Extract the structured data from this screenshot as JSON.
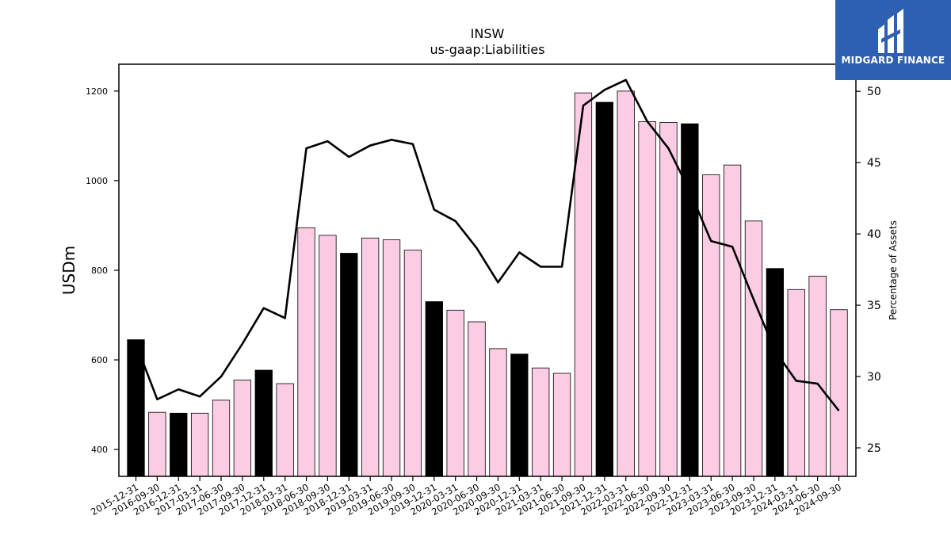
{
  "chart_data": {
    "type": "bar",
    "title": "INSW",
    "subtitle": "us-gaap:Liabilities",
    "ylabel": "USDm",
    "y2label": "Percentage of Assets",
    "ylim": [
      340,
      1260
    ],
    "y2lim": [
      23.0,
      51.9
    ],
    "yticks": [
      400,
      600,
      800,
      1000,
      1200
    ],
    "y2ticks": [
      25,
      30,
      35,
      40,
      45,
      50
    ],
    "categories": [
      "2015-12-31",
      "2016-09-30",
      "2016-12-31",
      "2017-03-31",
      "2017-06-30",
      "2017-09-30",
      "2017-12-31",
      "2018-03-31",
      "2018-06-30",
      "2018-09-30",
      "2018-12-31",
      "2019-03-31",
      "2019-06-30",
      "2019-09-30",
      "2019-12-31",
      "2020-03-31",
      "2020-06-30",
      "2020-09-30",
      "2020-12-31",
      "2021-03-31",
      "2021-06-30",
      "2021-09-30",
      "2021-12-31",
      "2022-03-31",
      "2022-06-30",
      "2022-09-30",
      "2022-12-31",
      "2023-03-31",
      "2023-06-30",
      "2023-09-30",
      "2023-12-31",
      "2024-03-31",
      "2024-06-30",
      "2024-09-30"
    ],
    "series": [
      {
        "type": "bar",
        "axis": "left",
        "values": [
          645,
          483,
          481,
          481,
          510,
          555,
          577,
          547,
          895,
          878,
          838,
          872,
          868,
          845,
          730,
          711,
          685,
          625,
          613,
          582,
          570,
          1196,
          1175,
          1200,
          1132,
          1130,
          1127,
          1013,
          1035,
          910,
          804,
          757,
          787,
          712
        ],
        "highlight": [
          true,
          false,
          true,
          false,
          false,
          false,
          true,
          false,
          false,
          false,
          true,
          false,
          false,
          false,
          true,
          false,
          false,
          false,
          true,
          false,
          false,
          false,
          true,
          false,
          false,
          false,
          true,
          false,
          false,
          false,
          true,
          false,
          false,
          false
        ],
        "color": "#fbcce4",
        "highlight_color": "#000000"
      },
      {
        "type": "line",
        "axis": "right",
        "values": [
          32.3,
          28.4,
          29.1,
          28.6,
          30.0,
          32.3,
          34.8,
          34.1,
          46.0,
          46.5,
          45.4,
          46.2,
          46.6,
          46.3,
          41.7,
          40.9,
          39.0,
          36.6,
          38.7,
          37.7,
          37.7,
          49.0,
          50.1,
          50.8,
          47.9,
          46.0,
          43.0,
          39.5,
          39.1,
          35.4,
          31.8,
          29.7,
          29.5,
          27.6
        ],
        "color": "#000000"
      }
    ],
    "legend": "none",
    "grid": false
  },
  "logo": {
    "text": "MIDGARD FINANCE",
    "icon": "midgard-logo-icon",
    "background": "#2f5fb0"
  }
}
